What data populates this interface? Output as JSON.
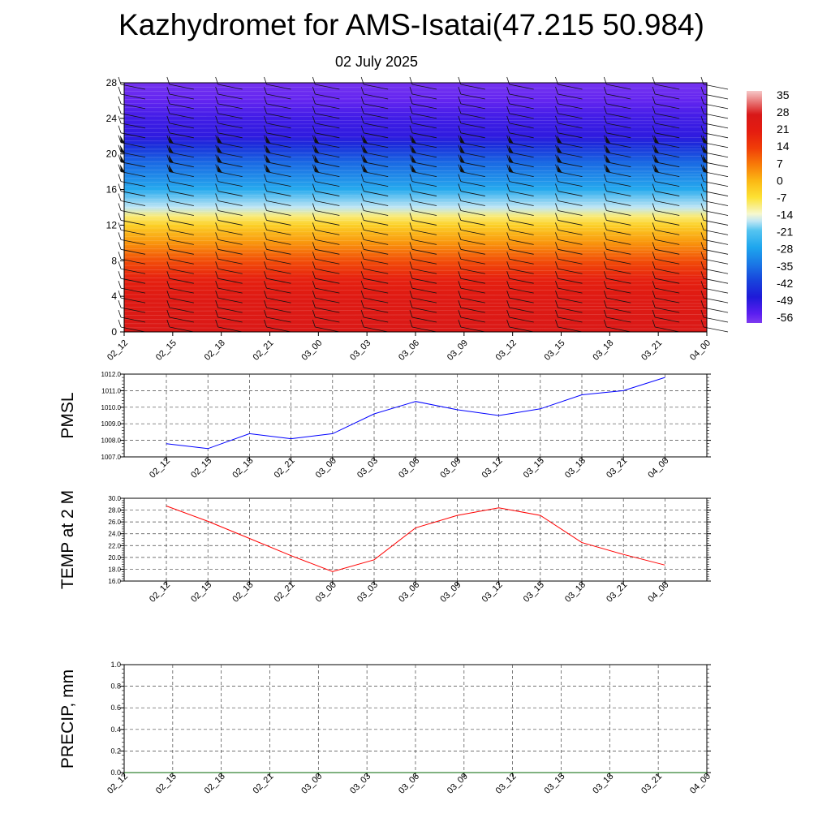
{
  "title": "Kazhydromet for AMS-Isatai(47.215 50.984)",
  "subtitle": "02 July 2025",
  "chart_data": [
    {
      "type": "heatmap",
      "description_of_field": "temperature cross-section with wind barbs",
      "x_categories": [
        "02_12",
        "02_15",
        "02_18",
        "02_21",
        "03_00",
        "03_03",
        "03_06",
        "03_09",
        "03_12",
        "03_15",
        "03_18",
        "03_21",
        "04_00"
      ],
      "y_ticks": [
        0,
        4,
        8,
        12,
        16,
        20,
        24,
        28
      ],
      "ylim": [
        0,
        28
      ],
      "colorbar": {
        "labels": [
          "35",
          "28",
          "21",
          "14",
          "7",
          "0",
          "-7",
          "-14",
          "-21",
          "-28",
          "-35",
          "-42",
          "-49",
          "-56"
        ],
        "range": [
          -60,
          38
        ],
        "stops": [
          {
            "value": 38,
            "color": "#f6c8c8"
          },
          {
            "value": 28,
            "color": "#d81818"
          },
          {
            "value": 21,
            "color": "#e41c10"
          },
          {
            "value": 14,
            "color": "#f03c08"
          },
          {
            "value": 7,
            "color": "#f87a08"
          },
          {
            "value": 0,
            "color": "#fbb814"
          },
          {
            "value": -7,
            "color": "#fde234"
          },
          {
            "value": -14,
            "color": "#f6f8d0"
          },
          {
            "value": -17,
            "color": "#bfe6f4"
          },
          {
            "value": -21,
            "color": "#54c4f0"
          },
          {
            "value": -28,
            "color": "#1ea6ee"
          },
          {
            "value": -35,
            "color": "#1a78e6"
          },
          {
            "value": -42,
            "color": "#1844dc"
          },
          {
            "value": -49,
            "color": "#1e1ad8"
          },
          {
            "value": -56,
            "color": "#5a1ef0"
          },
          {
            "value": -60,
            "color": "#7e3af0"
          }
        ]
      },
      "profile": [
        {
          "h": 0,
          "t": 27
        },
        {
          "h": 4,
          "t": 24
        },
        {
          "h": 6,
          "t": 20
        },
        {
          "h": 8,
          "t": 12
        },
        {
          "h": 10,
          "t": 4
        },
        {
          "h": 12,
          "t": -4
        },
        {
          "h": 13,
          "t": -10
        },
        {
          "h": 14,
          "t": -17
        },
        {
          "h": 16,
          "t": -27
        },
        {
          "h": 19,
          "t": -37
        },
        {
          "h": 21,
          "t": -46
        },
        {
          "h": 22,
          "t": -51
        },
        {
          "h": 24,
          "t": -53
        },
        {
          "h": 26,
          "t": -57
        },
        {
          "h": 28,
          "t": -59
        }
      ]
    },
    {
      "type": "line",
      "ylabel": "PMSL",
      "x": [
        "02_12",
        "02_15",
        "02_18",
        "02_21",
        "03_00",
        "03_03",
        "03_06",
        "03_09",
        "03_12",
        "03_15",
        "03_18",
        "03_21",
        "04_00"
      ],
      "values": [
        1007.8,
        1007.5,
        1008.4,
        1008.1,
        1008.4,
        1009.6,
        1010.35,
        1009.85,
        1009.5,
        1009.9,
        1010.75,
        1011.0,
        1011.8
      ],
      "ylim": [
        1007.0,
        1012.0
      ],
      "y_ticks": [
        "1007.0",
        "1008.0",
        "1009.0",
        "1010.0",
        "1011.0",
        "1012.0"
      ],
      "line_color": "#0000ff",
      "grid": true
    },
    {
      "type": "line",
      "ylabel": "TEMP at 2 M",
      "x": [
        "02_12",
        "02_15",
        "02_18",
        "02_21",
        "03_00",
        "03_03",
        "03_06",
        "03_09",
        "03_12",
        "03_15",
        "03_18",
        "03_21",
        "04_00"
      ],
      "values": [
        28.7,
        26.1,
        23.2,
        20.3,
        17.6,
        19.6,
        25.0,
        27.1,
        28.4,
        27.1,
        22.5,
        20.5,
        18.7
      ],
      "ylim": [
        16.0,
        30.0
      ],
      "y_ticks": [
        "16.0",
        "18.0",
        "20.0",
        "22.0",
        "24.0",
        "26.0",
        "28.0",
        "30.0"
      ],
      "line_color": "#ff0000",
      "grid": true
    },
    {
      "type": "line",
      "ylabel": "PRECIP, mm",
      "x": [
        "02_12",
        "02_15",
        "02_18",
        "02_21",
        "03_00",
        "03_03",
        "03_06",
        "03_09",
        "03_12",
        "03_15",
        "03_18",
        "03_21",
        "04_00"
      ],
      "values": [
        0,
        0,
        0,
        0,
        0,
        0,
        0,
        0,
        0,
        0,
        0,
        0,
        0
      ],
      "ylim": [
        0.0,
        1.0
      ],
      "y_ticks": [
        "0.0",
        "0.2",
        "0.4",
        "0.6",
        "0.8",
        "1.0"
      ],
      "line_color": "#006400",
      "grid": true
    }
  ]
}
